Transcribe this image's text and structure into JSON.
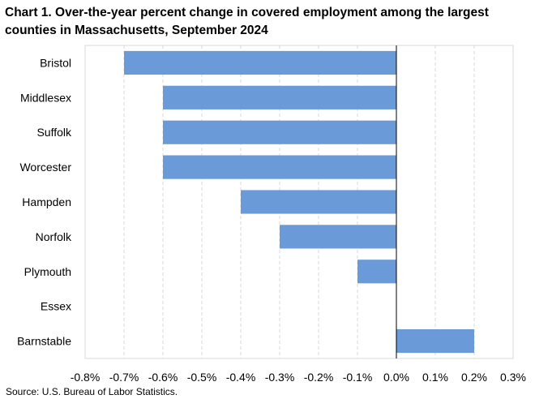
{
  "title": "Chart 1. Over-the-year percent change in covered employment among the largest counties in Massachusetts, September 2024",
  "source": "Source: U.S. Bureau of Labor Statistics.",
  "chart_data": {
    "type": "bar",
    "orientation": "horizontal",
    "categories": [
      "Bristol",
      "Middlesex",
      "Suffolk",
      "Worcester",
      "Hampden",
      "Norfolk",
      "Plymouth",
      "Essex",
      "Barnstable"
    ],
    "values": [
      -0.7,
      -0.6,
      -0.6,
      -0.6,
      -0.4,
      -0.3,
      -0.1,
      0.0,
      0.2
    ],
    "xlim": [
      -0.8,
      0.3
    ],
    "ticks": [
      -0.8,
      -0.7,
      -0.6,
      -0.5,
      -0.4,
      -0.3,
      -0.2,
      -0.1,
      0.0,
      0.1,
      0.2,
      0.3
    ],
    "tick_labels": [
      "-0.8%",
      "-0.7%",
      "-0.6%",
      "-0.5%",
      "-0.4%",
      "-0.3%",
      "-0.2%",
      "-0.1%",
      "0.0%",
      "0.1%",
      "0.2%",
      "0.3%"
    ],
    "bar_color": "#6a9ad8",
    "grid": "vertical dashed",
    "legend": "none"
  }
}
